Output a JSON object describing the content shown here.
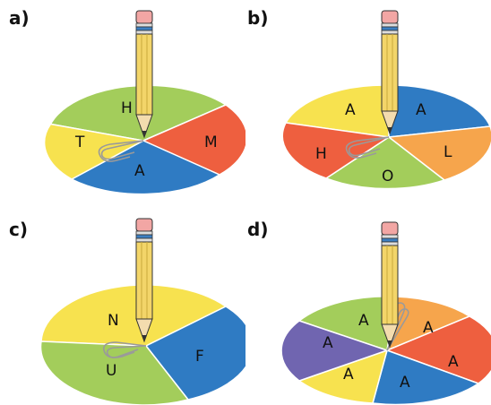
{
  "colors": {
    "yellow": "#f7e24f",
    "green": "#a3cd5b",
    "red": "#ee5f3f",
    "blue": "#2f7bc3",
    "orange": "#f6a54c",
    "purple": "#7065b0",
    "pencil": "#f3d569",
    "eraser": "#f2a6a4",
    "band": "#3d7fc1"
  },
  "panels": [
    {
      "label": "a)",
      "sectors": [
        {
          "label": "H",
          "color": "green"
        },
        {
          "label": "M",
          "color": "red"
        },
        {
          "label": "A",
          "color": "blue"
        },
        {
          "label": "T",
          "color": "yellow"
        }
      ]
    },
    {
      "label": "b)",
      "sectors": [
        {
          "label": "A",
          "color": "yellow"
        },
        {
          "label": "A",
          "color": "blue"
        },
        {
          "label": "L",
          "color": "orange"
        },
        {
          "label": "O",
          "color": "green"
        },
        {
          "label": "H",
          "color": "red"
        }
      ]
    },
    {
      "label": "c)",
      "sectors": [
        {
          "label": "N",
          "color": "yellow"
        },
        {
          "label": "F",
          "color": "blue"
        },
        {
          "label": "U",
          "color": "green"
        }
      ]
    },
    {
      "label": "d)",
      "sectors": [
        {
          "label": "A",
          "color": "green"
        },
        {
          "label": "A",
          "color": "orange"
        },
        {
          "label": "A",
          "color": "red"
        },
        {
          "label": "A",
          "color": "blue"
        },
        {
          "label": "A",
          "color": "yellow"
        },
        {
          "label": "A",
          "color": "purple"
        }
      ]
    }
  ]
}
